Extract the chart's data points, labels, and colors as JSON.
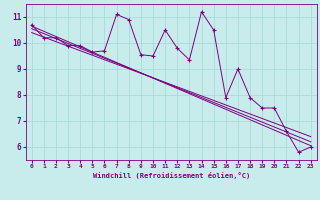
{
  "title": "",
  "xlabel": "Windchill (Refroidissement éolien,°C)",
  "ylabel": "",
  "bg_color": "#c8ecec",
  "grid_color": "#a0d8d8",
  "line_color": "#800080",
  "xlim": [
    -0.5,
    23.5
  ],
  "ylim": [
    5.5,
    11.5
  ],
  "xticks": [
    0,
    1,
    2,
    3,
    4,
    5,
    6,
    7,
    8,
    9,
    10,
    11,
    12,
    13,
    14,
    15,
    16,
    17,
    18,
    19,
    20,
    21,
    22,
    23
  ],
  "yticks": [
    6,
    7,
    8,
    9,
    10,
    11
  ],
  "jagged_x": [
    0,
    1,
    2,
    3,
    4,
    5,
    6,
    7,
    8,
    9,
    10,
    11,
    12,
    13,
    14,
    15,
    16,
    17,
    18,
    19,
    20,
    21,
    22,
    23
  ],
  "jagged_y": [
    10.7,
    10.2,
    10.2,
    9.9,
    9.9,
    9.65,
    9.7,
    11.1,
    10.9,
    9.55,
    9.5,
    10.5,
    9.8,
    9.35,
    11.2,
    10.5,
    7.9,
    9.0,
    7.9,
    7.5,
    7.5,
    6.6,
    5.8,
    6.0
  ],
  "line2_x": [
    0,
    23
  ],
  "line2_y": [
    10.65,
    6.05
  ],
  "line3_x": [
    0,
    23
  ],
  "line3_y": [
    10.55,
    6.2
  ],
  "line4_x": [
    0,
    23
  ],
  "line4_y": [
    10.4,
    6.4
  ],
  "marker": "+"
}
